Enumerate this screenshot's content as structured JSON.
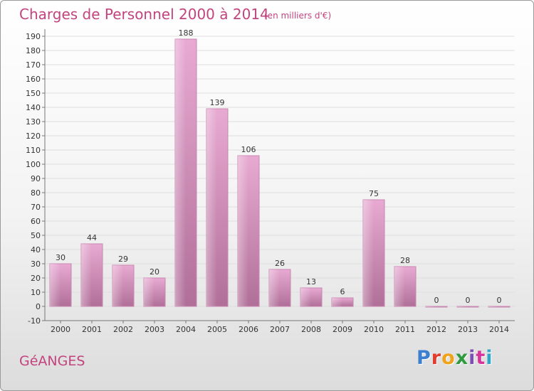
{
  "header": {
    "title": "Charges de Personnel 2000 à 2014",
    "subtitle": "(en milliers d'€)"
  },
  "footer": {
    "commune": "GéANGES",
    "logo_text": "Proxiti"
  },
  "colors": {
    "title": "#c2447f",
    "bar_top": "#e6a8cf",
    "bar_bottom": "#b06f98",
    "grid": "#dddddd"
  },
  "chart_data": {
    "type": "bar",
    "title": "Charges de Personnel 2000 à 2014",
    "subtitle": "(en milliers d'€)",
    "categories": [
      "2000",
      "2001",
      "2002",
      "2003",
      "2004",
      "2005",
      "2006",
      "2007",
      "2008",
      "2009",
      "2010",
      "2011",
      "2012",
      "2013",
      "2014"
    ],
    "values": [
      30,
      44,
      29,
      20,
      188,
      139,
      106,
      26,
      13,
      6,
      75,
      28,
      0,
      0,
      0
    ],
    "data_labels": [
      "30",
      "44",
      "29",
      "20",
      "188",
      "139",
      "106",
      "26",
      "13",
      "6",
      "75",
      "28",
      "0",
      "0",
      "0"
    ],
    "yticks": [
      -10,
      0,
      10,
      20,
      30,
      40,
      50,
      60,
      70,
      80,
      90,
      100,
      110,
      120,
      130,
      140,
      150,
      160,
      170,
      180,
      190
    ],
    "ylim": [
      -10,
      195
    ],
    "xlabel": "",
    "ylabel": "",
    "grid": true,
    "legend": "none"
  }
}
